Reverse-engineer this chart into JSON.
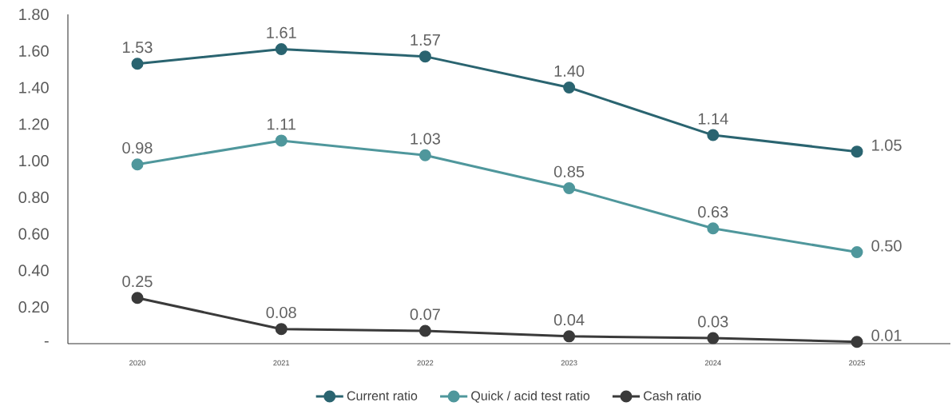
{
  "chart_data": {
    "type": "line",
    "categories": [
      "2020",
      "2021",
      "2022",
      "2023",
      "2024",
      "2025"
    ],
    "series": [
      {
        "name": "Current ratio",
        "color": "#2a6470",
        "values": [
          1.53,
          1.61,
          1.57,
          1.4,
          1.14,
          1.05
        ],
        "value_labels": [
          "1.53",
          "1.61",
          "1.57",
          "1.40",
          "1.14",
          "1.05"
        ]
      },
      {
        "name": "Quick / acid test ratio",
        "color": "#4f979c",
        "values": [
          0.98,
          1.11,
          1.03,
          0.85,
          0.63,
          0.5
        ],
        "value_labels": [
          "0.98",
          "1.11",
          "1.03",
          "0.85",
          "0.63",
          "0.50"
        ]
      },
      {
        "name": "Cash ratio",
        "color": "#3a3a3a",
        "values": [
          0.25,
          0.08,
          0.07,
          0.04,
          0.03,
          0.01
        ],
        "value_labels": [
          "0.25",
          "0.08",
          "0.07",
          "0.04",
          "0.03",
          "0.01"
        ]
      }
    ],
    "ylim": [
      0,
      1.8
    ],
    "yticks": [
      {
        "value": 0,
        "label": "-"
      },
      {
        "value": 0.2,
        "label": "0.20"
      },
      {
        "value": 0.4,
        "label": "0.40"
      },
      {
        "value": 0.6,
        "label": "0.60"
      },
      {
        "value": 0.8,
        "label": "0.80"
      },
      {
        "value": 1.0,
        "label": "1.00"
      },
      {
        "value": 1.2,
        "label": "1.20"
      },
      {
        "value": 1.4,
        "label": "1.40"
      },
      {
        "value": 1.6,
        "label": "1.60"
      },
      {
        "value": 1.8,
        "label": "1.80"
      }
    ],
    "legend": "bottom",
    "marker": "circle",
    "line_style": "solid"
  }
}
